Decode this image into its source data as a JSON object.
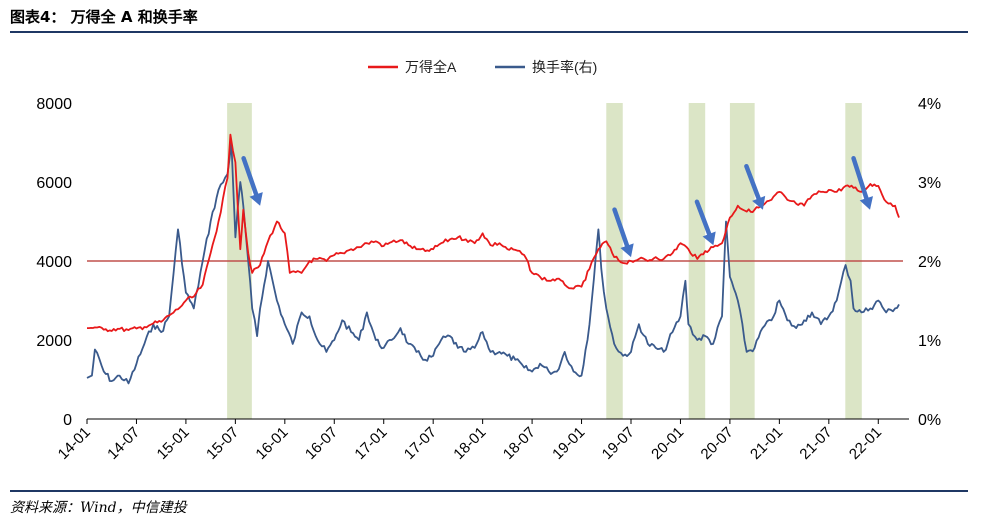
{
  "figure": {
    "title": "图表4： 万得全 A 和换手率",
    "source": "资料来源：Wind，中信建投"
  },
  "chart_data": {
    "type": "line",
    "x_labels": [
      "14-01",
      "14-07",
      "15-01",
      "15-07",
      "16-01",
      "16-07",
      "17-01",
      "17-07",
      "18-01",
      "18-07",
      "19-01",
      "19-07",
      "20-01",
      "20-07",
      "21-01",
      "21-07",
      "22-01"
    ],
    "x_range": [
      "2014-01",
      "2022-04"
    ],
    "y_left": {
      "min": 0,
      "max": 8000,
      "ticks": [
        "0",
        "2000",
        "4000",
        "6000",
        "8000"
      ]
    },
    "y_right": {
      "min": 0,
      "max": 4,
      "ticks": [
        "0%",
        "1%",
        "2%",
        "3%",
        "4%"
      ],
      "unit": "%"
    },
    "reference_line": {
      "axis": "left",
      "value": 4000,
      "color": "#c0504d"
    },
    "legend_position": "top-center",
    "series": [
      {
        "name": "万得全A",
        "axis": "left",
        "color": "#e8191a",
        "points": [
          [
            2014.0,
            2300
          ],
          [
            2014.08,
            2320
          ],
          [
            2014.17,
            2260
          ],
          [
            2014.33,
            2280
          ],
          [
            2014.42,
            2250
          ],
          [
            2014.5,
            2290
          ],
          [
            2014.58,
            2330
          ],
          [
            2014.67,
            2420
          ],
          [
            2014.75,
            2460
          ],
          [
            2014.83,
            2620
          ],
          [
            2014.92,
            2780
          ],
          [
            2015.0,
            3000
          ],
          [
            2015.08,
            3100
          ],
          [
            2015.17,
            3400
          ],
          [
            2015.25,
            4200
          ],
          [
            2015.33,
            5000
          ],
          [
            2015.42,
            6100
          ],
          [
            2015.45,
            7200
          ],
          [
            2015.5,
            6500
          ],
          [
            2015.55,
            4300
          ],
          [
            2015.58,
            5300
          ],
          [
            2015.63,
            4200
          ],
          [
            2015.67,
            3700
          ],
          [
            2015.75,
            3900
          ],
          [
            2015.83,
            4500
          ],
          [
            2015.92,
            5000
          ],
          [
            2016.0,
            4700
          ],
          [
            2016.05,
            3700
          ],
          [
            2016.17,
            3700
          ],
          [
            2016.25,
            4000
          ],
          [
            2016.33,
            4050
          ],
          [
            2016.42,
            4000
          ],
          [
            2016.5,
            4150
          ],
          [
            2016.58,
            4200
          ],
          [
            2016.67,
            4300
          ],
          [
            2016.75,
            4350
          ],
          [
            2016.83,
            4450
          ],
          [
            2016.92,
            4500
          ],
          [
            2017.0,
            4380
          ],
          [
            2017.08,
            4480
          ],
          [
            2017.17,
            4530
          ],
          [
            2017.25,
            4400
          ],
          [
            2017.33,
            4300
          ],
          [
            2017.42,
            4250
          ],
          [
            2017.5,
            4300
          ],
          [
            2017.58,
            4450
          ],
          [
            2017.67,
            4550
          ],
          [
            2017.75,
            4600
          ],
          [
            2017.83,
            4550
          ],
          [
            2017.92,
            4450
          ],
          [
            2018.0,
            4700
          ],
          [
            2018.08,
            4400
          ],
          [
            2018.17,
            4450
          ],
          [
            2018.25,
            4300
          ],
          [
            2018.33,
            4280
          ],
          [
            2018.42,
            4150
          ],
          [
            2018.5,
            3700
          ],
          [
            2018.58,
            3600
          ],
          [
            2018.67,
            3500
          ],
          [
            2018.75,
            3550
          ],
          [
            2018.83,
            3400
          ],
          [
            2018.92,
            3300
          ],
          [
            2019.0,
            3350
          ],
          [
            2019.08,
            3800
          ],
          [
            2019.17,
            4300
          ],
          [
            2019.25,
            4500
          ],
          [
            2019.33,
            4100
          ],
          [
            2019.42,
            3950
          ],
          [
            2019.5,
            4000
          ],
          [
            2019.58,
            4050
          ],
          [
            2019.67,
            4000
          ],
          [
            2019.75,
            4100
          ],
          [
            2019.83,
            4050
          ],
          [
            2019.92,
            4200
          ],
          [
            2020.0,
            4450
          ],
          [
            2020.08,
            4300
          ],
          [
            2020.17,
            4050
          ],
          [
            2020.25,
            4250
          ],
          [
            2020.33,
            4350
          ],
          [
            2020.42,
            4450
          ],
          [
            2020.5,
            5100
          ],
          [
            2020.58,
            5400
          ],
          [
            2020.67,
            5250
          ],
          [
            2020.75,
            5300
          ],
          [
            2020.83,
            5400
          ],
          [
            2020.92,
            5550
          ],
          [
            2021.0,
            5750
          ],
          [
            2021.08,
            5550
          ],
          [
            2021.17,
            5450
          ],
          [
            2021.25,
            5400
          ],
          [
            2021.33,
            5650
          ],
          [
            2021.42,
            5750
          ],
          [
            2021.5,
            5800
          ],
          [
            2021.58,
            5750
          ],
          [
            2021.67,
            5900
          ],
          [
            2021.75,
            5850
          ],
          [
            2021.83,
            5750
          ],
          [
            2021.92,
            5950
          ],
          [
            2022.0,
            5900
          ],
          [
            2022.08,
            5500
          ],
          [
            2022.17,
            5400
          ],
          [
            2022.21,
            5100
          ]
        ]
      },
      {
        "name": "换手率(右)",
        "axis": "right",
        "color": "#3a5a8c",
        "points": [
          [
            2014.0,
            0.52
          ],
          [
            2014.05,
            0.55
          ],
          [
            2014.08,
            0.88
          ],
          [
            2014.17,
            0.6
          ],
          [
            2014.25,
            0.48
          ],
          [
            2014.33,
            0.55
          ],
          [
            2014.42,
            0.45
          ],
          [
            2014.5,
            0.7
          ],
          [
            2014.58,
            0.95
          ],
          [
            2014.67,
            1.2
          ],
          [
            2014.75,
            1.1
          ],
          [
            2014.83,
            1.3
          ],
          [
            2014.92,
            2.4
          ],
          [
            2015.0,
            1.6
          ],
          [
            2015.08,
            1.4
          ],
          [
            2015.17,
            2.0
          ],
          [
            2015.25,
            2.5
          ],
          [
            2015.33,
            2.9
          ],
          [
            2015.42,
            3.1
          ],
          [
            2015.46,
            3.5
          ],
          [
            2015.5,
            2.3
          ],
          [
            2015.55,
            3.0
          ],
          [
            2015.58,
            2.7
          ],
          [
            2015.63,
            2.0
          ],
          [
            2015.67,
            1.4
          ],
          [
            2015.72,
            1.05
          ],
          [
            2015.75,
            1.4
          ],
          [
            2015.83,
            2.0
          ],
          [
            2015.92,
            1.5
          ],
          [
            2016.0,
            1.2
          ],
          [
            2016.08,
            0.95
          ],
          [
            2016.17,
            1.35
          ],
          [
            2016.25,
            1.3
          ],
          [
            2016.33,
            1.0
          ],
          [
            2016.42,
            0.85
          ],
          [
            2016.5,
            1.0
          ],
          [
            2016.58,
            1.25
          ],
          [
            2016.67,
            1.1
          ],
          [
            2016.75,
            1.0
          ],
          [
            2016.83,
            1.35
          ],
          [
            2016.92,
            1.0
          ],
          [
            2017.0,
            0.9
          ],
          [
            2017.08,
            1.0
          ],
          [
            2017.17,
            1.15
          ],
          [
            2017.25,
            0.95
          ],
          [
            2017.33,
            0.85
          ],
          [
            2017.42,
            0.75
          ],
          [
            2017.5,
            0.8
          ],
          [
            2017.58,
            1.0
          ],
          [
            2017.67,
            1.05
          ],
          [
            2017.75,
            0.9
          ],
          [
            2017.83,
            0.85
          ],
          [
            2017.92,
            0.9
          ],
          [
            2018.0,
            1.1
          ],
          [
            2018.08,
            0.85
          ],
          [
            2018.17,
            0.85
          ],
          [
            2018.25,
            0.8
          ],
          [
            2018.33,
            0.75
          ],
          [
            2018.42,
            0.65
          ],
          [
            2018.5,
            0.6
          ],
          [
            2018.58,
            0.7
          ],
          [
            2018.67,
            0.6
          ],
          [
            2018.75,
            0.6
          ],
          [
            2018.83,
            0.85
          ],
          [
            2018.92,
            0.6
          ],
          [
            2019.0,
            0.55
          ],
          [
            2019.08,
            1.2
          ],
          [
            2019.17,
            2.4
          ],
          [
            2019.2,
            1.9
          ],
          [
            2019.25,
            1.4
          ],
          [
            2019.33,
            0.95
          ],
          [
            2019.42,
            0.8
          ],
          [
            2019.5,
            0.85
          ],
          [
            2019.58,
            1.2
          ],
          [
            2019.67,
            0.95
          ],
          [
            2019.75,
            0.9
          ],
          [
            2019.83,
            0.85
          ],
          [
            2019.92,
            1.1
          ],
          [
            2020.0,
            1.3
          ],
          [
            2020.05,
            1.75
          ],
          [
            2020.08,
            1.2
          ],
          [
            2020.17,
            1.0
          ],
          [
            2020.25,
            1.05
          ],
          [
            2020.33,
            0.95
          ],
          [
            2020.42,
            1.3
          ],
          [
            2020.46,
            2.5
          ],
          [
            2020.5,
            1.8
          ],
          [
            2020.58,
            1.5
          ],
          [
            2020.67,
            0.85
          ],
          [
            2020.75,
            0.9
          ],
          [
            2020.83,
            1.15
          ],
          [
            2020.92,
            1.25
          ],
          [
            2021.0,
            1.5
          ],
          [
            2021.08,
            1.25
          ],
          [
            2021.17,
            1.15
          ],
          [
            2021.25,
            1.25
          ],
          [
            2021.33,
            1.35
          ],
          [
            2021.42,
            1.2
          ],
          [
            2021.5,
            1.3
          ],
          [
            2021.58,
            1.5
          ],
          [
            2021.67,
            1.95
          ],
          [
            2021.72,
            1.75
          ],
          [
            2021.75,
            1.4
          ],
          [
            2021.83,
            1.35
          ],
          [
            2021.92,
            1.4
          ],
          [
            2022.0,
            1.5
          ],
          [
            2022.08,
            1.35
          ],
          [
            2022.17,
            1.4
          ],
          [
            2022.21,
            1.45
          ]
        ]
      }
    ],
    "shaded_periods": [
      [
        "2015-06",
        "2015-09"
      ],
      [
        "2019-04",
        "2019-06"
      ],
      [
        "2020-02",
        "2020-04"
      ],
      [
        "2020-07",
        "2020-10"
      ],
      [
        "2021-09",
        "2021-11"
      ]
    ],
    "shade_color": "#dbe5c6",
    "arrow_color": "#4472c4",
    "arrows": [
      {
        "from_x": "2015-08",
        "from_y": 6600,
        "to_x": "2015-10",
        "to_y": 5400
      },
      {
        "from_x": "2019-05",
        "from_y": 5300,
        "to_x": "2019-07",
        "to_y": 4100
      },
      {
        "from_x": "2020-03",
        "from_y": 5500,
        "to_x": "2020-05",
        "to_y": 4400
      },
      {
        "from_x": "2020-09",
        "from_y": 6400,
        "to_x": "2020-11",
        "to_y": 5300
      },
      {
        "from_x": "2021-10",
        "from_y": 6600,
        "to_x": "2021-12",
        "to_y": 5300
      }
    ]
  }
}
